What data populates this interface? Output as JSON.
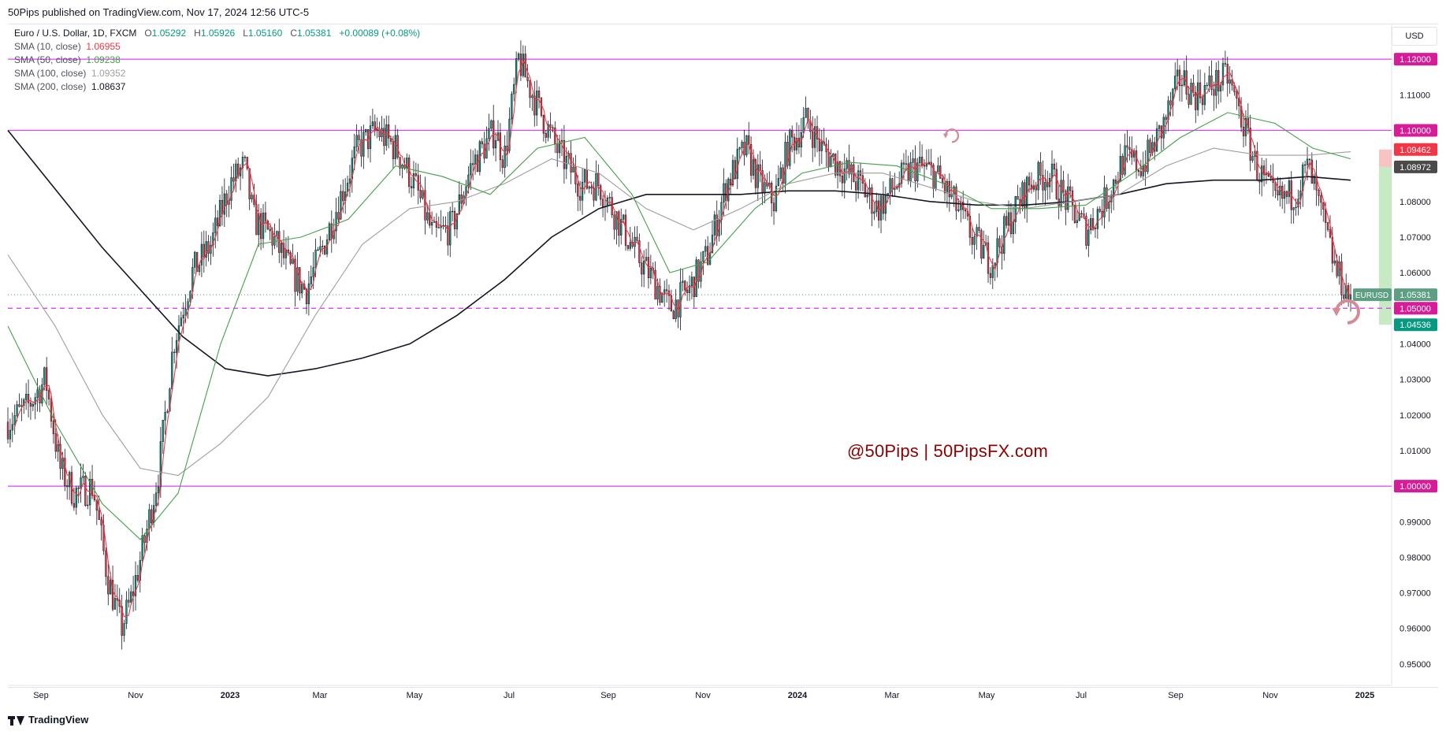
{
  "header": {
    "published": "50Pips published on TradingView.com, Nov 17, 2024 12:56 UTC-5"
  },
  "legend": {
    "symbol": "Euro / U.S. Dollar, 1D, FXCM",
    "ohlc": {
      "o_label": "O",
      "o": "1.05292",
      "h_label": "H",
      "h": "1.05926",
      "l_label": "L",
      "l": "1.05160",
      "c_label": "C",
      "c": "1.05381",
      "change": "+0.00089 (+0.08%)"
    },
    "sma": [
      {
        "label": "SMA (10, close)",
        "value": "1.06955",
        "color": "#f23645"
      },
      {
        "label": "SMA (50, close)",
        "value": "1.09238",
        "color": "#43a047"
      },
      {
        "label": "SMA (100, close)",
        "value": "1.09352",
        "color": "#9e9e9e"
      },
      {
        "label": "SMA (200, close)",
        "value": "1.08637",
        "color": "#131722"
      }
    ]
  },
  "price_axis": {
    "currency_button": "USD"
  },
  "watermark": "@50Pips  |  50PipsFX.com",
  "footer": {
    "brand": "TradingView"
  },
  "chart_data": {
    "type": "candlestick",
    "symbol": "EURUSD",
    "timeframe": "1D",
    "ylim": [
      0.944,
      1.13
    ],
    "y_ticks": [
      "0.95000",
      "0.96000",
      "0.97000",
      "0.98000",
      "0.99000",
      "1.01000",
      "1.02000",
      "1.03000",
      "1.04000",
      "1.06000",
      "1.07000",
      "1.08000",
      "1.11000"
    ],
    "x_ticks": [
      {
        "label": "Sep",
        "t": 0.7,
        "bold": false
      },
      {
        "label": "Nov",
        "t": 2.7,
        "bold": false
      },
      {
        "label": "2023",
        "t": 4.7,
        "bold": true
      },
      {
        "label": "Mar",
        "t": 6.6,
        "bold": false
      },
      {
        "label": "May",
        "t": 8.6,
        "bold": false
      },
      {
        "label": "Jul",
        "t": 10.6,
        "bold": false
      },
      {
        "label": "Sep",
        "t": 12.7,
        "bold": false
      },
      {
        "label": "Nov",
        "t": 14.7,
        "bold": false
      },
      {
        "label": "2024",
        "t": 16.7,
        "bold": true
      },
      {
        "label": "Mar",
        "t": 18.7,
        "bold": false
      },
      {
        "label": "May",
        "t": 20.7,
        "bold": false
      },
      {
        "label": "Jul",
        "t": 22.7,
        "bold": false
      },
      {
        "label": "Sep",
        "t": 24.7,
        "bold": false
      },
      {
        "label": "Nov",
        "t": 26.7,
        "bold": false
      },
      {
        "label": "2025",
        "t": 28.7,
        "bold": true
      }
    ],
    "price_path": [
      [
        0.0,
        1.018
      ],
      [
        0.4,
        1.022
      ],
      [
        0.8,
        1.03
      ],
      [
        1.1,
        1.005
      ],
      [
        1.4,
        0.998
      ],
      [
        1.8,
        1.0
      ],
      [
        2.1,
        0.975
      ],
      [
        2.4,
        0.96
      ],
      [
        2.6,
        0.968
      ],
      [
        2.9,
        0.985
      ],
      [
        3.2,
        1.005
      ],
      [
        3.5,
        1.04
      ],
      [
        3.9,
        1.06
      ],
      [
        4.3,
        1.068
      ],
      [
        4.7,
        1.085
      ],
      [
        5.0,
        1.09
      ],
      [
        5.2,
        1.075
      ],
      [
        5.6,
        1.07
      ],
      [
        6.0,
        1.06
      ],
      [
        6.3,
        1.055
      ],
      [
        6.6,
        1.065
      ],
      [
        7.0,
        1.08
      ],
      [
        7.4,
        1.095
      ],
      [
        7.8,
        1.1
      ],
      [
        8.2,
        1.095
      ],
      [
        8.6,
        1.085
      ],
      [
        9.0,
        1.07
      ],
      [
        9.4,
        1.073
      ],
      [
        9.8,
        1.09
      ],
      [
        10.3,
        1.1
      ],
      [
        10.5,
        1.092
      ],
      [
        10.8,
        1.12
      ],
      [
        11.1,
        1.11
      ],
      [
        11.6,
        1.095
      ],
      [
        12.1,
        1.085
      ],
      [
        12.5,
        1.085
      ],
      [
        12.9,
        1.075
      ],
      [
        13.3,
        1.065
      ],
      [
        13.7,
        1.057
      ],
      [
        14.0,
        1.05
      ],
      [
        14.4,
        1.055
      ],
      [
        14.8,
        1.065
      ],
      [
        15.2,
        1.085
      ],
      [
        15.6,
        1.095
      ],
      [
        15.9,
        1.085
      ],
      [
        16.2,
        1.08
      ],
      [
        16.5,
        1.095
      ],
      [
        16.9,
        1.103
      ],
      [
        17.2,
        1.095
      ],
      [
        17.6,
        1.09
      ],
      [
        18.0,
        1.085
      ],
      [
        18.4,
        1.078
      ],
      [
        18.8,
        1.085
      ],
      [
        19.2,
        1.09
      ],
      [
        19.6,
        1.088
      ],
      [
        20.0,
        1.08
      ],
      [
        20.4,
        1.07
      ],
      [
        20.8,
        1.063
      ],
      [
        21.2,
        1.075
      ],
      [
        21.6,
        1.085
      ],
      [
        22.0,
        1.088
      ],
      [
        22.4,
        1.08
      ],
      [
        22.8,
        1.072
      ],
      [
        23.2,
        1.08
      ],
      [
        23.6,
        1.092
      ],
      [
        24.0,
        1.09
      ],
      [
        24.4,
        1.1
      ],
      [
        24.8,
        1.115
      ],
      [
        25.1,
        1.11
      ],
      [
        25.4,
        1.112
      ],
      [
        25.8,
        1.115
      ],
      [
        26.1,
        1.103
      ],
      [
        26.4,
        1.09
      ],
      [
        26.8,
        1.08
      ],
      [
        27.2,
        1.082
      ],
      [
        27.5,
        1.09
      ],
      [
        27.8,
        1.075
      ],
      [
        28.1,
        1.06
      ],
      [
        28.4,
        1.053
      ]
    ],
    "sma_paths": [
      {
        "name": "SMA (200, close)",
        "color": "#131722",
        "width": 1.6,
        "points": [
          [
            0,
            1.1
          ],
          [
            2,
            1.067
          ],
          [
            3.7,
            1.042
          ],
          [
            4.6,
            1.033
          ],
          [
            5.5,
            1.031
          ],
          [
            6.5,
            1.033
          ],
          [
            7.5,
            1.036
          ],
          [
            8.5,
            1.04
          ],
          [
            9.5,
            1.048
          ],
          [
            10.5,
            1.058
          ],
          [
            11.5,
            1.07
          ],
          [
            12.5,
            1.078
          ],
          [
            13.5,
            1.082
          ],
          [
            14.5,
            1.082
          ],
          [
            15.5,
            1.082
          ],
          [
            16.5,
            1.083
          ],
          [
            17.5,
            1.083
          ],
          [
            18.5,
            1.082
          ],
          [
            19.5,
            1.08
          ],
          [
            20.5,
            1.079
          ],
          [
            21.5,
            1.079
          ],
          [
            22.5,
            1.08
          ],
          [
            23.5,
            1.082
          ],
          [
            24.5,
            1.085
          ],
          [
            25.5,
            1.086
          ],
          [
            26.5,
            1.086
          ],
          [
            27.5,
            1.087
          ],
          [
            28.4,
            1.086
          ]
        ]
      },
      {
        "name": "SMA (100, close)",
        "color": "#9e9e9e",
        "width": 1.1,
        "points": [
          [
            0,
            1.065
          ],
          [
            1,
            1.045
          ],
          [
            2,
            1.02
          ],
          [
            2.8,
            1.005
          ],
          [
            3.6,
            1.003
          ],
          [
            4.5,
            1.012
          ],
          [
            5.5,
            1.025
          ],
          [
            6.5,
            1.048
          ],
          [
            7.5,
            1.068
          ],
          [
            8.5,
            1.078
          ],
          [
            9.5,
            1.08
          ],
          [
            10.5,
            1.085
          ],
          [
            11.5,
            1.092
          ],
          [
            12.5,
            1.088
          ],
          [
            13.5,
            1.078
          ],
          [
            14.5,
            1.072
          ],
          [
            15.5,
            1.078
          ],
          [
            16.5,
            1.085
          ],
          [
            17.5,
            1.088
          ],
          [
            18.5,
            1.088
          ],
          [
            19.5,
            1.084
          ],
          [
            20.5,
            1.08
          ],
          [
            21.5,
            1.078
          ],
          [
            22.5,
            1.08
          ],
          [
            23.5,
            1.082
          ],
          [
            24.5,
            1.09
          ],
          [
            25.5,
            1.095
          ],
          [
            26.5,
            1.093
          ],
          [
            27.5,
            1.093
          ],
          [
            28.4,
            1.094
          ]
        ]
      },
      {
        "name": "SMA (50, close)",
        "color": "#43a047",
        "width": 1.1,
        "points": [
          [
            0,
            1.045
          ],
          [
            1,
            1.018
          ],
          [
            2,
            0.995
          ],
          [
            2.8,
            0.985
          ],
          [
            3.6,
            0.998
          ],
          [
            4.5,
            1.04
          ],
          [
            5.3,
            1.068
          ],
          [
            6.2,
            1.07
          ],
          [
            7.2,
            1.075
          ],
          [
            8.2,
            1.09
          ],
          [
            9.2,
            1.087
          ],
          [
            10.2,
            1.082
          ],
          [
            11.2,
            1.095
          ],
          [
            12.2,
            1.098
          ],
          [
            13.2,
            1.082
          ],
          [
            14.0,
            1.06
          ],
          [
            14.8,
            1.063
          ],
          [
            15.8,
            1.078
          ],
          [
            16.8,
            1.088
          ],
          [
            17.8,
            1.091
          ],
          [
            18.8,
            1.09
          ],
          [
            19.8,
            1.085
          ],
          [
            20.8,
            1.078
          ],
          [
            21.8,
            1.078
          ],
          [
            22.8,
            1.079
          ],
          [
            23.8,
            1.088
          ],
          [
            24.8,
            1.098
          ],
          [
            25.8,
            1.105
          ],
          [
            26.8,
            1.102
          ],
          [
            27.6,
            1.095
          ],
          [
            28.4,
            1.092
          ]
        ]
      },
      {
        "name": "SMA (10, close)",
        "color": "#f23645",
        "width": 1.1,
        "smooth": 3
      }
    ],
    "h_lines": [
      {
        "value": 1.12,
        "label": "1.12000",
        "color": "#e040fb",
        "style": "solid"
      },
      {
        "value": 1.1,
        "label": "1.10000",
        "color": "#e040fb",
        "style": "solid"
      },
      {
        "value": 1.05,
        "label": "1.05000",
        "color": "#e040fb",
        "style": "dashed"
      },
      {
        "value": 1.0,
        "label": "1.00000",
        "color": "#e040fb",
        "style": "solid"
      }
    ],
    "price_tags": [
      {
        "value": 1.09462,
        "label": "1.09462",
        "bg": "#f23645"
      },
      {
        "value": 1.08972,
        "label": "1.08972",
        "bg": "#4a4a4a"
      },
      {
        "value": 1.05381,
        "label": "1.05381",
        "bg": "#5c9f82",
        "tag": "EURUSD"
      },
      {
        "value": 1.04536,
        "label": "1.04536",
        "bg": "#089981"
      }
    ],
    "current_price": 1.05381,
    "position": {
      "entry": 1.08972,
      "stop": 1.09462,
      "target": 1.04536
    },
    "seed": 7
  }
}
